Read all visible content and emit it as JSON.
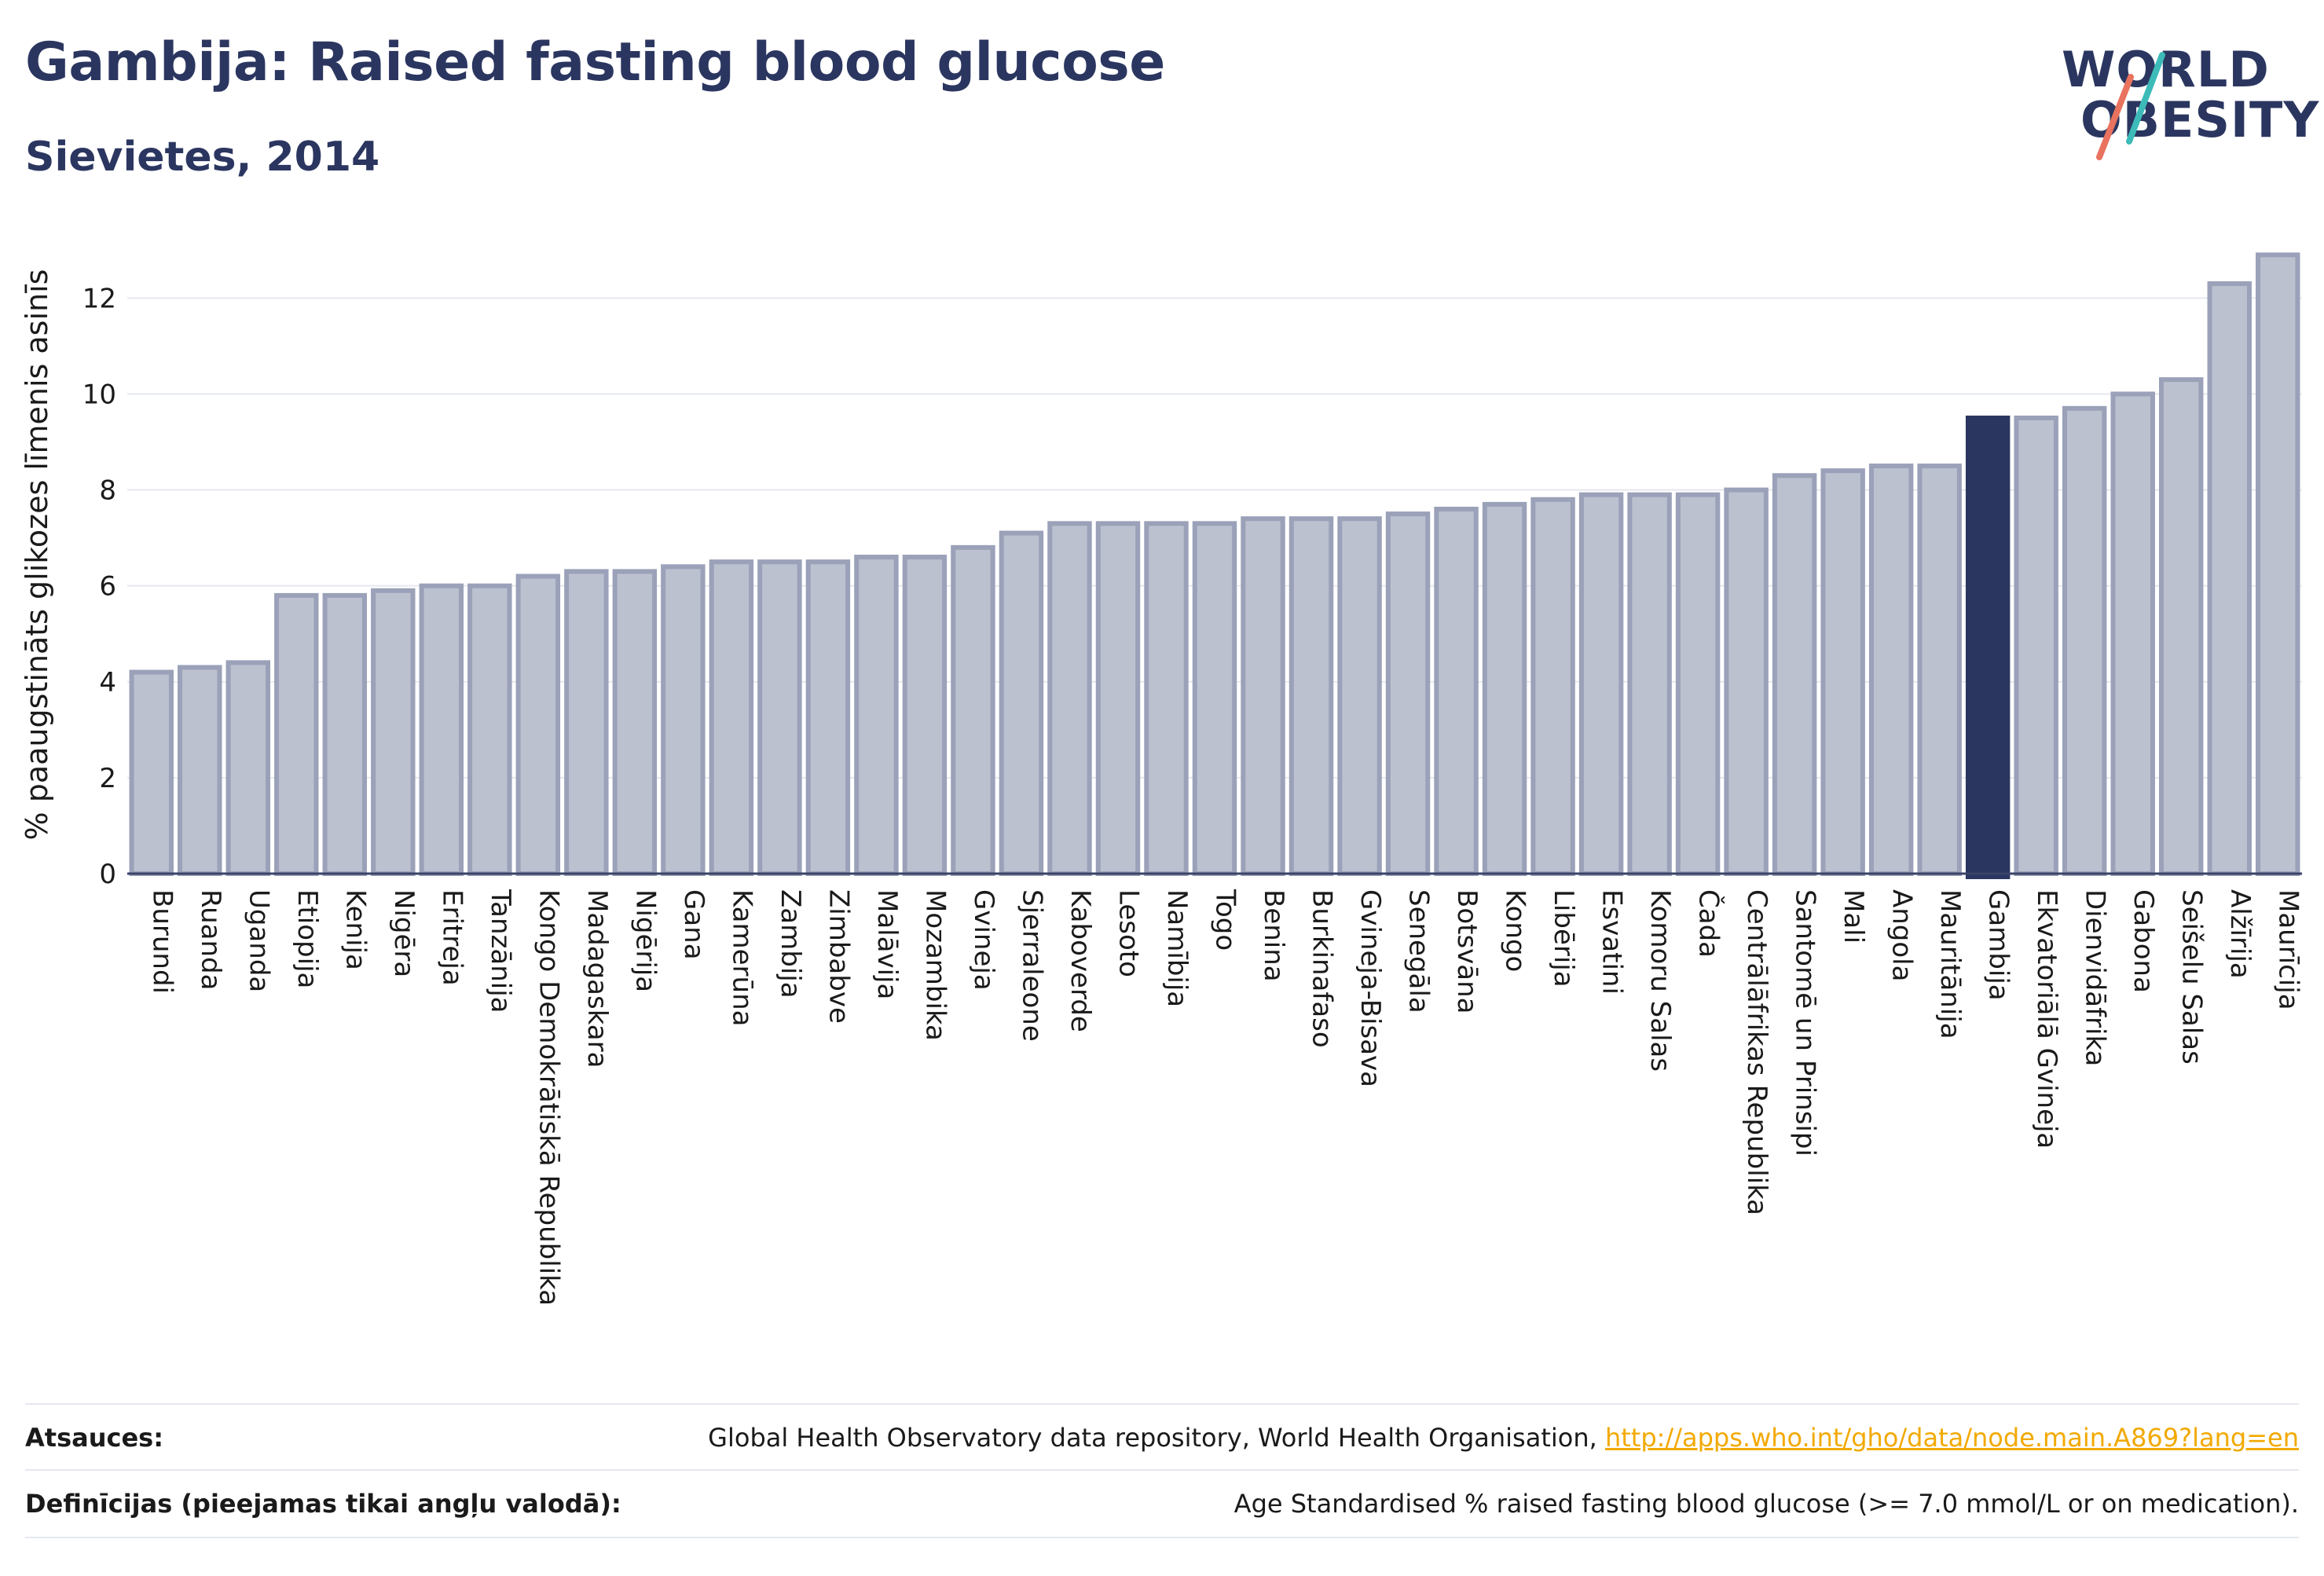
{
  "header": {
    "title": "Gambija: Raised fasting blood glucose",
    "subtitle": "Sievietes, 2014"
  },
  "logo": {
    "line1": "WORLD",
    "line2": "OBESITY"
  },
  "colors": {
    "bar_fill": "#bcc1d0",
    "bar_stroke": "#9aa1b8",
    "highlight": "#2b3660",
    "grid": "#e6e8ef",
    "axis_text": "#1a1a1a",
    "logo_slash_teal": "#3dbbb8",
    "logo_slash_coral": "#e9735e"
  },
  "footer": {
    "sources_label": "Atsauces:",
    "sources_text": "Global Health Observatory data repository, World Health Organisation, ",
    "sources_link": "http://apps.who.int/gho/data/node.main.A869?lang=en",
    "definitions_label": "Definīcijas (pieejamas tikai angļu valodā):",
    "definitions_text": "Age Standardised % raised fasting blood glucose (>= 7.0 mmol/L or on medication)."
  },
  "chart_data": {
    "type": "bar",
    "ylabel": "% paaugstināts glikozes līmenis asinīs",
    "ylim": [
      0,
      13.3
    ],
    "yticks": [
      0,
      2,
      4,
      6,
      8,
      10,
      12
    ],
    "grid": true,
    "highlight": "Gambija",
    "categories": [
      "Burundi",
      "Ruanda",
      "Uganda",
      "Etiopija",
      "Kenija",
      "Nigēra",
      "Eritreja",
      "Tanzānija",
      "Kongo Demokrātiskā Republika",
      "Madagaskara",
      "Nigērija",
      "Gana",
      "Kamerūna",
      "Zambija",
      "Zimbabve",
      "Malāvija",
      "Mozambika",
      "Gvineja",
      "Sjerraleone",
      "Kaboverde",
      "Lesoto",
      "Namībija",
      "Togo",
      "Benina",
      "Burkinafaso",
      "Gvineja-Bisava",
      "Senegāla",
      "Botsvāna",
      "Kongo",
      "Libērija",
      "Esvatini",
      "Komoru Salas",
      "Čada",
      "Centrālāfrikas Republika",
      "Santomē un Prinsipi",
      "Mali",
      "Angola",
      "Mauritānija",
      "Gambija",
      "Ekvatoriālā Gvineja",
      "Dienvidāfrika",
      "Gabona",
      "Seišelu Salas",
      "Alžīrija",
      "Maurīcija"
    ],
    "values": [
      4.2,
      4.3,
      4.4,
      5.8,
      5.8,
      5.9,
      6.0,
      6.0,
      6.2,
      6.3,
      6.3,
      6.4,
      6.5,
      6.5,
      6.5,
      6.6,
      6.6,
      6.8,
      7.1,
      7.3,
      7.3,
      7.3,
      7.3,
      7.4,
      7.4,
      7.4,
      7.5,
      7.6,
      7.7,
      7.8,
      7.9,
      7.9,
      7.9,
      8.0,
      8.3,
      8.4,
      8.5,
      8.5,
      9.5,
      9.5,
      9.7,
      10.0,
      10.3,
      12.3,
      12.9
    ]
  }
}
